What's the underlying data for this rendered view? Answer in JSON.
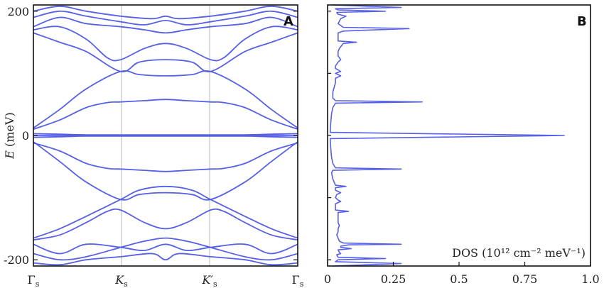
{
  "chart_data": [
    {
      "panel": "A",
      "type": "line",
      "ylabel_italic": "E",
      "ylabel_unit": "(meV)",
      "ylim": [
        -210,
        210
      ],
      "yticks": [
        -200,
        0,
        200
      ],
      "xticks": [
        {
          "main": "Γ",
          "sub": "s"
        },
        {
          "main": "K",
          "sub": "s"
        },
        {
          "main": "K′",
          "sub": "s"
        },
        {
          "main": "Γ",
          "sub": "s"
        }
      ],
      "bands": [
        [
          [
            0,
            0
          ],
          [
            0.33,
            0
          ],
          [
            0.5,
            0
          ],
          [
            0.67,
            0
          ],
          [
            1,
            0
          ]
        ],
        [
          [
            0,
            3
          ],
          [
            0.1,
            2
          ],
          [
            0.2,
            1
          ],
          [
            0.33,
            1
          ],
          [
            0.5,
            1
          ],
          [
            0.67,
            1
          ],
          [
            0.8,
            1
          ],
          [
            0.9,
            2
          ],
          [
            1,
            3
          ]
        ],
        [
          [
            0,
            -3
          ],
          [
            0.1,
            -2
          ],
          [
            0.2,
            -1
          ],
          [
            0.33,
            -1
          ],
          [
            0.5,
            -1
          ],
          [
            0.67,
            -1
          ],
          [
            0.8,
            -1
          ],
          [
            0.9,
            -2
          ],
          [
            1,
            -3
          ]
        ],
        [
          [
            0,
            10
          ],
          [
            0.1,
            25
          ],
          [
            0.2,
            45
          ],
          [
            0.28,
            53
          ],
          [
            0.33,
            54
          ],
          [
            0.42,
            56
          ],
          [
            0.5,
            58
          ],
          [
            0.58,
            56
          ],
          [
            0.67,
            54
          ],
          [
            0.72,
            53
          ],
          [
            0.8,
            45
          ],
          [
            0.9,
            25
          ],
          [
            1,
            10
          ]
        ],
        [
          [
            0,
            12
          ],
          [
            0.1,
            42
          ],
          [
            0.2,
            75
          ],
          [
            0.33,
            103
          ],
          [
            0.4,
            98
          ],
          [
            0.5,
            96
          ],
          [
            0.6,
            98
          ],
          [
            0.67,
            103
          ],
          [
            0.8,
            75
          ],
          [
            0.9,
            42
          ],
          [
            1,
            12
          ]
        ],
        [
          [
            0,
            165
          ],
          [
            0.1,
            150
          ],
          [
            0.2,
            135
          ],
          [
            0.33,
            103
          ],
          [
            0.4,
            118
          ],
          [
            0.5,
            122
          ],
          [
            0.6,
            118
          ],
          [
            0.67,
            103
          ],
          [
            0.8,
            135
          ],
          [
            0.9,
            150
          ],
          [
            1,
            165
          ]
        ],
        [
          [
            0,
            170
          ],
          [
            0.1,
            175
          ],
          [
            0.2,
            155
          ],
          [
            0.28,
            125
          ],
          [
            0.33,
            122
          ],
          [
            0.42,
            140
          ],
          [
            0.5,
            148
          ],
          [
            0.58,
            140
          ],
          [
            0.67,
            122
          ],
          [
            0.72,
            125
          ],
          [
            0.8,
            155
          ],
          [
            0.9,
            175
          ],
          [
            1,
            170
          ]
        ],
        [
          [
            0,
            175
          ],
          [
            0.1,
            190
          ],
          [
            0.2,
            180
          ],
          [
            0.33,
            175
          ],
          [
            0.42,
            170
          ],
          [
            0.5,
            165
          ],
          [
            0.58,
            170
          ],
          [
            0.67,
            175
          ],
          [
            0.8,
            180
          ],
          [
            0.9,
            190
          ],
          [
            1,
            175
          ]
        ],
        [
          [
            0,
            190
          ],
          [
            0.1,
            200
          ],
          [
            0.2,
            192
          ],
          [
            0.33,
            183
          ],
          [
            0.42,
            178
          ],
          [
            0.5,
            185
          ],
          [
            0.58,
            178
          ],
          [
            0.67,
            183
          ],
          [
            0.8,
            192
          ],
          [
            0.9,
            200
          ],
          [
            1,
            190
          ]
        ],
        [
          [
            0,
            200
          ],
          [
            0.1,
            208
          ],
          [
            0.2,
            200
          ],
          [
            0.33,
            192
          ],
          [
            0.45,
            188
          ],
          [
            0.5,
            192
          ],
          [
            0.55,
            188
          ],
          [
            0.67,
            192
          ],
          [
            0.8,
            200
          ],
          [
            0.9,
            208
          ],
          [
            1,
            200
          ]
        ],
        [
          [
            0,
            -12
          ],
          [
            0.1,
            -25
          ],
          [
            0.2,
            -45
          ],
          [
            0.28,
            -53
          ],
          [
            0.33,
            -54
          ],
          [
            0.42,
            -56
          ],
          [
            0.5,
            -58
          ],
          [
            0.58,
            -56
          ],
          [
            0.67,
            -54
          ],
          [
            0.72,
            -53
          ],
          [
            0.8,
            -45
          ],
          [
            0.9,
            -25
          ],
          [
            1,
            -12
          ]
        ],
        [
          [
            0,
            -10
          ],
          [
            0.1,
            -42
          ],
          [
            0.2,
            -75
          ],
          [
            0.33,
            -103
          ],
          [
            0.4,
            -95
          ],
          [
            0.5,
            -92
          ],
          [
            0.6,
            -95
          ],
          [
            0.67,
            -103
          ],
          [
            0.8,
            -75
          ],
          [
            0.9,
            -42
          ],
          [
            1,
            -10
          ]
        ],
        [
          [
            0,
            -165
          ],
          [
            0.1,
            -150
          ],
          [
            0.2,
            -130
          ],
          [
            0.33,
            -103
          ],
          [
            0.4,
            -88
          ],
          [
            0.5,
            -82
          ],
          [
            0.6,
            -88
          ],
          [
            0.67,
            -103
          ],
          [
            0.8,
            -130
          ],
          [
            0.9,
            -150
          ],
          [
            1,
            -165
          ]
        ],
        [
          [
            0,
            -168
          ],
          [
            0.1,
            -160
          ],
          [
            0.2,
            -140
          ],
          [
            0.28,
            -122
          ],
          [
            0.33,
            -120
          ],
          [
            0.42,
            -140
          ],
          [
            0.5,
            -150
          ],
          [
            0.58,
            -140
          ],
          [
            0.67,
            -120
          ],
          [
            0.72,
            -122
          ],
          [
            0.8,
            -140
          ],
          [
            0.9,
            -160
          ],
          [
            1,
            -168
          ]
        ],
        [
          [
            0,
            -175
          ],
          [
            0.1,
            -190
          ],
          [
            0.2,
            -175
          ],
          [
            0.33,
            -180
          ],
          [
            0.42,
            -185
          ],
          [
            0.5,
            -175
          ],
          [
            0.58,
            -185
          ],
          [
            0.67,
            -180
          ],
          [
            0.8,
            -175
          ],
          [
            0.9,
            -190
          ],
          [
            1,
            -175
          ]
        ],
        [
          [
            0,
            -190
          ],
          [
            0.1,
            -200
          ],
          [
            0.2,
            -195
          ],
          [
            0.33,
            -180
          ],
          [
            0.42,
            -170
          ],
          [
            0.5,
            -165
          ],
          [
            0.58,
            -170
          ],
          [
            0.67,
            -180
          ],
          [
            0.8,
            -195
          ],
          [
            0.9,
            -200
          ],
          [
            1,
            -190
          ]
        ],
        [
          [
            0,
            -205
          ],
          [
            0.1,
            -208
          ],
          [
            0.2,
            -200
          ],
          [
            0.33,
            -195
          ],
          [
            0.45,
            -190
          ],
          [
            0.5,
            -200
          ],
          [
            0.55,
            -190
          ],
          [
            0.67,
            -195
          ],
          [
            0.8,
            -200
          ],
          [
            0.9,
            -208
          ],
          [
            1,
            -205
          ]
        ]
      ]
    },
    {
      "panel": "B",
      "type": "line",
      "xlabel": "DOS (10¹² cm⁻² meV⁻¹)",
      "xlim": [
        0,
        1.0
      ],
      "ylim": [
        -210,
        210
      ],
      "xticks": [
        "0",
        "0.25",
        "0.5",
        "0.75",
        "1.0"
      ],
      "xtick_values": [
        0,
        0.25,
        0.5,
        0.75,
        1.0
      ],
      "points": [
        [
          0.02,
          -210
        ],
        [
          0.28,
          -206
        ],
        [
          0.03,
          -203
        ],
        [
          0.04,
          -200
        ],
        [
          0.22,
          -198
        ],
        [
          0.04,
          -196
        ],
        [
          0.035,
          -192
        ],
        [
          0.05,
          -190
        ],
        [
          0.045,
          -188
        ],
        [
          0.04,
          -184
        ],
        [
          0.09,
          -182
        ],
        [
          0.05,
          -180
        ],
        [
          0.05,
          -178
        ],
        [
          0.08,
          -176
        ],
        [
          0.28,
          -175
        ],
        [
          0.06,
          -173
        ],
        [
          0.045,
          -170
        ],
        [
          0.04,
          -165
        ],
        [
          0.035,
          -160
        ],
        [
          0.04,
          -155
        ],
        [
          0.04,
          -150
        ],
        [
          0.045,
          -145
        ],
        [
          0.04,
          -140
        ],
        [
          0.04,
          -130
        ],
        [
          0.04,
          -124
        ],
        [
          0.08,
          -122
        ],
        [
          0.03,
          -120
        ],
        [
          0.03,
          -110
        ],
        [
          0.05,
          -106
        ],
        [
          0.04,
          -104
        ],
        [
          0.03,
          -100
        ],
        [
          0.035,
          -95
        ],
        [
          0.05,
          -92
        ],
        [
          0.03,
          -88
        ],
        [
          0.03,
          -84
        ],
        [
          0.07,
          -82
        ],
        [
          0.03,
          -80
        ],
        [
          0.02,
          -70
        ],
        [
          0.015,
          -60
        ],
        [
          0.02,
          -56
        ],
        [
          0.28,
          -54
        ],
        [
          0.03,
          -52
        ],
        [
          0.02,
          -45
        ],
        [
          0.015,
          -35
        ],
        [
          0.012,
          -20
        ],
        [
          0.01,
          -5
        ],
        [
          0.9,
          0
        ],
        [
          0.01,
          5
        ],
        [
          0.012,
          20
        ],
        [
          0.015,
          35
        ],
        [
          0.02,
          45
        ],
        [
          0.03,
          52
        ],
        [
          0.36,
          54
        ],
        [
          0.03,
          56
        ],
        [
          0.02,
          60
        ],
        [
          0.02,
          70
        ],
        [
          0.03,
          85
        ],
        [
          0.03,
          92
        ],
        [
          0.05,
          96
        ],
        [
          0.03,
          100
        ],
        [
          0.05,
          103
        ],
        [
          0.03,
          108
        ],
        [
          0.03,
          112
        ],
        [
          0.04,
          118
        ],
        [
          0.05,
          122
        ],
        [
          0.04,
          128
        ],
        [
          0.04,
          135
        ],
        [
          0.045,
          140
        ],
        [
          0.06,
          148
        ],
        [
          0.11,
          150
        ],
        [
          0.04,
          152
        ],
        [
          0.04,
          160
        ],
        [
          0.04,
          165
        ],
        [
          0.06,
          168
        ],
        [
          0.31,
          172
        ],
        [
          0.06,
          174
        ],
        [
          0.04,
          180
        ],
        [
          0.05,
          188
        ],
        [
          0.07,
          192
        ],
        [
          0.04,
          195
        ],
        [
          0.035,
          198
        ],
        [
          0.22,
          200
        ],
        [
          0.04,
          202
        ],
        [
          0.03,
          204
        ],
        [
          0.28,
          206
        ],
        [
          0.02,
          210
        ]
      ]
    }
  ],
  "panel_labels": {
    "a": "A",
    "b": "B"
  }
}
